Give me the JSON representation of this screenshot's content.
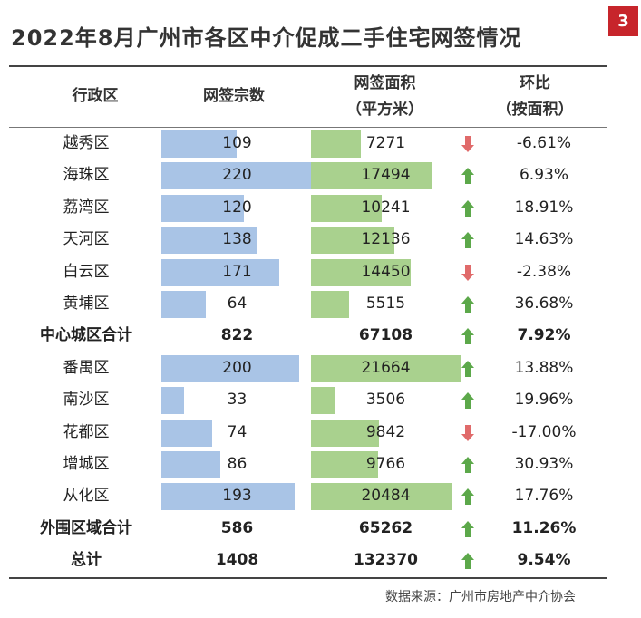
{
  "title": "2022年8月广州市各区中介促成二手住宅网签情况",
  "page_number": "3",
  "headers": {
    "district": "行政区",
    "count": "网签宗数",
    "area_line1": "网签面积",
    "area_line2": "（平方米）",
    "mom_line1": "环比",
    "mom_line2": "（按面积）"
  },
  "source": "数据来源：广州市房地产中介协会",
  "colors": {
    "count_bar": "#a9c4e6",
    "area_bar": "#a9d18e",
    "arrow_up": "#5ca84a",
    "arrow_down": "#e06a6a",
    "badge": "#c7252b"
  },
  "chart_data": {
    "type": "table",
    "title": "2022年8月广州市各区中介促成二手住宅网签情况",
    "columns": [
      "行政区",
      "网签宗数",
      "网签面积（平方米）",
      "环比（按面积）"
    ],
    "rows": [
      {
        "district": "越秀区",
        "count": 109,
        "area": 7271,
        "mom": "-6.61%",
        "dir": "down",
        "bar": true,
        "bold": false
      },
      {
        "district": "海珠区",
        "count": 220,
        "area": 17494,
        "mom": "6.93%",
        "dir": "up",
        "bar": true,
        "bold": false
      },
      {
        "district": "荔湾区",
        "count": 120,
        "area": 10241,
        "mom": "18.91%",
        "dir": "up",
        "bar": true,
        "bold": false
      },
      {
        "district": "天河区",
        "count": 138,
        "area": 12136,
        "mom": "14.63%",
        "dir": "up",
        "bar": true,
        "bold": false
      },
      {
        "district": "白云区",
        "count": 171,
        "area": 14450,
        "mom": "-2.38%",
        "dir": "down",
        "bar": true,
        "bold": false
      },
      {
        "district": "黄埔区",
        "count": 64,
        "area": 5515,
        "mom": "36.68%",
        "dir": "up",
        "bar": true,
        "bold": false
      },
      {
        "district": "中心城区合计",
        "count": 822,
        "area": 67108,
        "mom": "7.92%",
        "dir": "up",
        "bar": false,
        "bold": true
      },
      {
        "district": "番禺区",
        "count": 200,
        "area": 21664,
        "mom": "13.88%",
        "dir": "up",
        "bar": true,
        "bold": false
      },
      {
        "district": "南沙区",
        "count": 33,
        "area": 3506,
        "mom": "19.96%",
        "dir": "up",
        "bar": true,
        "bold": false
      },
      {
        "district": "花都区",
        "count": 74,
        "area": 9842,
        "mom": "-17.00%",
        "dir": "down",
        "bar": true,
        "bold": false
      },
      {
        "district": "增城区",
        "count": 86,
        "area": 9766,
        "mom": "30.93%",
        "dir": "up",
        "bar": true,
        "bold": false
      },
      {
        "district": "从化区",
        "count": 193,
        "area": 20484,
        "mom": "17.76%",
        "dir": "up",
        "bar": true,
        "bold": false
      },
      {
        "district": "外围区域合计",
        "count": 586,
        "area": 65262,
        "mom": "11.26%",
        "dir": "up",
        "bar": false,
        "bold": true
      },
      {
        "district": "总计",
        "count": 1408,
        "area": 132370,
        "mom": "9.54%",
        "dir": "up",
        "bar": false,
        "bold": true
      }
    ],
    "count_bar_max": 220,
    "area_bar_max": 21664
  }
}
